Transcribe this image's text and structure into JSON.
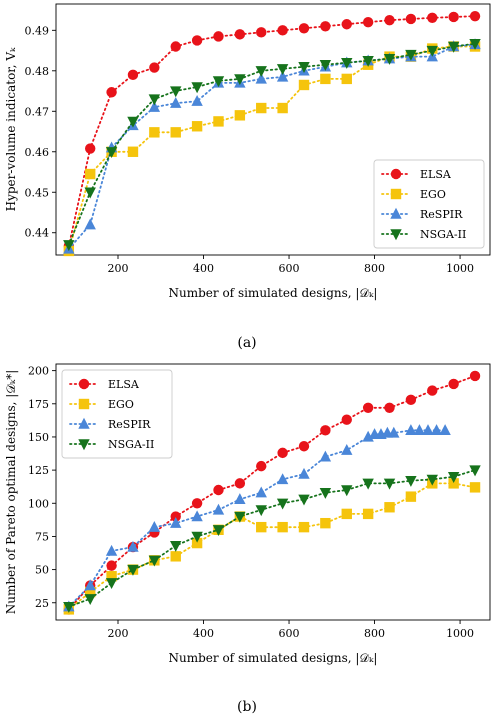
{
  "chart_data": [
    {
      "type": "line",
      "panel": "a",
      "caption": "(a)",
      "xlabel": "Number of simulated designs, |𝒟ₖ|",
      "ylabel": "Hyper-volume indicator, Vₖ",
      "xlim": [
        55,
        1070
      ],
      "ylim": [
        0.4345,
        0.4965
      ],
      "xticks": [
        200,
        400,
        600,
        800,
        1000
      ],
      "yticks": [
        0.44,
        0.45,
        0.46,
        0.47,
        0.48,
        0.49
      ],
      "ytick_labels": [
        "0.44",
        "0.45",
        "0.46",
        "0.47",
        "0.48",
        "0.49"
      ],
      "grid": false,
      "legend_position": "lower-right",
      "series": [
        {
          "name": "ELSA",
          "color": "#e8131a",
          "marker": "circle",
          "x": [
            85,
            135,
            185,
            235,
            285,
            335,
            385,
            435,
            485,
            535,
            585,
            635,
            685,
            735,
            785,
            835,
            885,
            935,
            985,
            1035
          ],
          "y": [
            0.4367,
            0.4608,
            0.4747,
            0.479,
            0.4808,
            0.486,
            0.4875,
            0.4885,
            0.489,
            0.4895,
            0.49,
            0.4905,
            0.491,
            0.4915,
            0.492,
            0.4925,
            0.4928,
            0.4931,
            0.4933,
            0.4935
          ]
        },
        {
          "name": "EGO",
          "color": "#f5c40c",
          "marker": "square",
          "x": [
            85,
            135,
            185,
            235,
            285,
            335,
            385,
            435,
            485,
            535,
            585,
            635,
            685,
            735,
            785,
            835,
            885,
            935,
            985,
            1035
          ],
          "y": [
            0.4355,
            0.4545,
            0.46,
            0.46,
            0.4648,
            0.4648,
            0.4663,
            0.4675,
            0.469,
            0.4708,
            0.4708,
            0.4765,
            0.478,
            0.478,
            0.4815,
            0.4835,
            0.4835,
            0.4855,
            0.486,
            0.486
          ]
        },
        {
          "name": "ReSPIR",
          "color": "#4a86d8",
          "marker": "triangle-up",
          "x": [
            85,
            135,
            185,
            235,
            285,
            335,
            385,
            435,
            485,
            535,
            585,
            635,
            685,
            735,
            785,
            835,
            885,
            935,
            985,
            1035
          ],
          "y": [
            0.436,
            0.442,
            0.461,
            0.4665,
            0.471,
            0.472,
            0.4725,
            0.477,
            0.477,
            0.478,
            0.4785,
            0.48,
            0.481,
            0.482,
            0.4825,
            0.483,
            0.4835,
            0.4835,
            0.486,
            0.4865
          ]
        },
        {
          "name": "NSGA-II",
          "color": "#16731c",
          "marker": "triangle-down",
          "x": [
            85,
            135,
            185,
            235,
            285,
            335,
            385,
            435,
            485,
            535,
            585,
            635,
            685,
            735,
            785,
            835,
            885,
            935,
            985,
            1035
          ],
          "y": [
            0.437,
            0.45,
            0.46,
            0.4675,
            0.473,
            0.475,
            0.476,
            0.4775,
            0.478,
            0.48,
            0.4805,
            0.481,
            0.4815,
            0.482,
            0.4825,
            0.483,
            0.484,
            0.485,
            0.486,
            0.4867
          ]
        }
      ]
    },
    {
      "type": "line",
      "panel": "b",
      "caption": "(b)",
      "xlabel": "Number of simulated designs, |𝒟ₖ|",
      "ylabel": "Number of Pareto optimal designs, |𝒟ₖ*|",
      "xlim": [
        55,
        1070
      ],
      "ylim": [
        12,
        205
      ],
      "xticks": [
        200,
        400,
        600,
        800,
        1000
      ],
      "yticks": [
        25,
        50,
        75,
        100,
        125,
        150,
        175,
        200
      ],
      "ytick_labels": [
        "25",
        "50",
        "75",
        "100",
        "125",
        "150",
        "175",
        "200"
      ],
      "grid": false,
      "legend_position": "upper-left",
      "series": [
        {
          "name": "ELSA",
          "color": "#e8131a",
          "marker": "circle",
          "x": [
            85,
            135,
            185,
            235,
            285,
            335,
            385,
            435,
            485,
            535,
            585,
            635,
            685,
            735,
            785,
            835,
            885,
            935,
            985,
            1035
          ],
          "y": [
            20,
            38,
            53,
            67,
            78,
            90,
            100,
            110,
            115,
            128,
            138,
            143,
            155,
            163,
            172,
            172,
            178,
            185,
            190,
            196
          ]
        },
        {
          "name": "EGO",
          "color": "#f5c40c",
          "marker": "square",
          "x": [
            85,
            135,
            185,
            235,
            285,
            335,
            385,
            435,
            485,
            535,
            585,
            635,
            685,
            735,
            785,
            835,
            885,
            935,
            985,
            1035
          ],
          "y": [
            20,
            33,
            45,
            50,
            57,
            60,
            70,
            80,
            90,
            82,
            82,
            82,
            85,
            92,
            92,
            97,
            105,
            115,
            115,
            112
          ]
        },
        {
          "name": "ReSPIR",
          "color": "#4a86d8",
          "marker": "triangle-up",
          "x": [
            85,
            135,
            185,
            235,
            285,
            335,
            385,
            435,
            485,
            535,
            585,
            635,
            685,
            735,
            785,
            800,
            815,
            830,
            845,
            885,
            905,
            925,
            945,
            965
          ],
          "y": [
            22,
            38,
            64,
            67,
            82,
            85,
            90,
            95,
            103,
            108,
            118,
            122,
            135,
            140,
            150,
            152,
            152,
            153,
            153,
            155,
            155,
            155,
            155,
            155
          ]
        },
        {
          "name": "NSGA-II",
          "color": "#16731c",
          "marker": "triangle-down",
          "x": [
            85,
            135,
            185,
            235,
            285,
            335,
            385,
            435,
            485,
            535,
            585,
            635,
            685,
            735,
            785,
            835,
            885,
            935,
            985,
            1035
          ],
          "y": [
            22,
            28,
            40,
            50,
            57,
            68,
            75,
            80,
            90,
            95,
            100,
            103,
            108,
            110,
            115,
            115,
            117,
            118,
            120,
            125
          ]
        }
      ]
    }
  ]
}
